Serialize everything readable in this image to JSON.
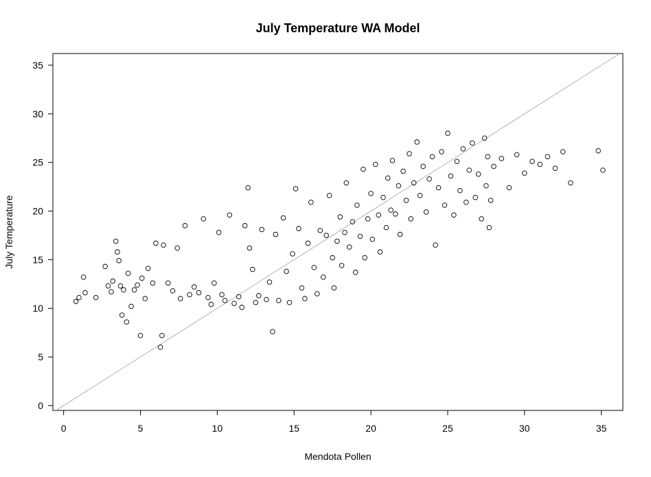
{
  "chart_data": {
    "type": "scatter",
    "title": "July Temperature WA Model",
    "xlabel": "Mendota Pollen",
    "ylabel": "July Temperature",
    "xlim": [
      -0.7,
      36.4
    ],
    "ylim": [
      -0.5,
      36.2
    ],
    "x_ticks": [
      0,
      5,
      10,
      15,
      20,
      25,
      30,
      35
    ],
    "y_ticks": [
      0,
      5,
      10,
      15,
      20,
      25,
      30,
      35
    ],
    "marker": "open-circle",
    "point_color": "#000000",
    "reference_line": {
      "type": "y=x",
      "color": "#a0a0a0"
    },
    "grid": false,
    "legend": "none",
    "points": [
      [
        0.8,
        10.7
      ],
      [
        1.0,
        11.1
      ],
      [
        1.3,
        13.2
      ],
      [
        1.4,
        11.6
      ],
      [
        2.1,
        11.1
      ],
      [
        2.7,
        14.3
      ],
      [
        2.9,
        12.3
      ],
      [
        3.1,
        11.7
      ],
      [
        3.2,
        12.8
      ],
      [
        3.4,
        16.9
      ],
      [
        3.5,
        15.8
      ],
      [
        3.6,
        14.9
      ],
      [
        3.7,
        12.3
      ],
      [
        3.8,
        9.3
      ],
      [
        3.9,
        11.9
      ],
      [
        4.1,
        8.6
      ],
      [
        4.2,
        13.6
      ],
      [
        4.4,
        10.2
      ],
      [
        4.6,
        11.9
      ],
      [
        4.8,
        12.4
      ],
      [
        5.0,
        7.2
      ],
      [
        5.1,
        13.1
      ],
      [
        5.3,
        11.0
      ],
      [
        5.5,
        14.1
      ],
      [
        5.8,
        12.6
      ],
      [
        6.0,
        16.7
      ],
      [
        6.3,
        6.0
      ],
      [
        6.4,
        7.2
      ],
      [
        6.5,
        16.5
      ],
      [
        6.8,
        12.6
      ],
      [
        7.1,
        11.8
      ],
      [
        7.4,
        16.2
      ],
      [
        7.6,
        11.0
      ],
      [
        7.9,
        18.5
      ],
      [
        8.2,
        11.4
      ],
      [
        8.5,
        12.2
      ],
      [
        8.8,
        11.6
      ],
      [
        9.1,
        19.2
      ],
      [
        9.4,
        11.1
      ],
      [
        9.6,
        10.4
      ],
      [
        9.8,
        12.6
      ],
      [
        10.1,
        17.8
      ],
      [
        10.3,
        11.4
      ],
      [
        10.5,
        10.8
      ],
      [
        10.8,
        19.6
      ],
      [
        11.1,
        10.5
      ],
      [
        11.4,
        11.2
      ],
      [
        11.6,
        10.1
      ],
      [
        11.8,
        18.5
      ],
      [
        12.0,
        22.4
      ],
      [
        12.1,
        16.2
      ],
      [
        12.3,
        14.0
      ],
      [
        12.5,
        10.6
      ],
      [
        12.7,
        11.3
      ],
      [
        12.9,
        18.1
      ],
      [
        13.2,
        10.9
      ],
      [
        13.4,
        12.7
      ],
      [
        13.6,
        7.6
      ],
      [
        13.8,
        17.6
      ],
      [
        14.0,
        10.8
      ],
      [
        14.3,
        19.3
      ],
      [
        14.5,
        13.8
      ],
      [
        14.7,
        10.6
      ],
      [
        14.9,
        15.6
      ],
      [
        15.1,
        22.3
      ],
      [
        15.3,
        18.2
      ],
      [
        15.5,
        12.1
      ],
      [
        15.7,
        11.0
      ],
      [
        15.9,
        16.7
      ],
      [
        16.1,
        20.9
      ],
      [
        16.3,
        14.2
      ],
      [
        16.5,
        11.5
      ],
      [
        16.7,
        18.0
      ],
      [
        16.9,
        13.2
      ],
      [
        17.1,
        17.5
      ],
      [
        17.3,
        21.6
      ],
      [
        17.5,
        15.2
      ],
      [
        17.6,
        12.1
      ],
      [
        17.8,
        16.9
      ],
      [
        18.0,
        19.4
      ],
      [
        18.1,
        14.4
      ],
      [
        18.3,
        17.8
      ],
      [
        18.4,
        22.9
      ],
      [
        18.6,
        16.3
      ],
      [
        18.8,
        18.9
      ],
      [
        19.0,
        13.7
      ],
      [
        19.1,
        20.6
      ],
      [
        19.3,
        17.4
      ],
      [
        19.5,
        24.3
      ],
      [
        19.6,
        15.2
      ],
      [
        19.8,
        19.2
      ],
      [
        20.0,
        21.8
      ],
      [
        20.1,
        17.1
      ],
      [
        20.3,
        24.8
      ],
      [
        20.5,
        19.6
      ],
      [
        20.6,
        15.8
      ],
      [
        20.8,
        21.4
      ],
      [
        21.0,
        18.3
      ],
      [
        21.1,
        23.4
      ],
      [
        21.3,
        20.1
      ],
      [
        21.4,
        25.2
      ],
      [
        21.6,
        19.7
      ],
      [
        21.8,
        22.6
      ],
      [
        21.9,
        17.6
      ],
      [
        22.1,
        24.1
      ],
      [
        22.3,
        21.1
      ],
      [
        22.5,
        25.9
      ],
      [
        22.6,
        19.2
      ],
      [
        22.8,
        22.9
      ],
      [
        23.0,
        27.1
      ],
      [
        23.2,
        21.6
      ],
      [
        23.4,
        24.6
      ],
      [
        23.6,
        19.9
      ],
      [
        23.8,
        23.3
      ],
      [
        24.0,
        25.6
      ],
      [
        24.2,
        16.5
      ],
      [
        24.4,
        22.4
      ],
      [
        24.6,
        26.1
      ],
      [
        24.8,
        20.6
      ],
      [
        25.0,
        28.0
      ],
      [
        25.2,
        23.6
      ],
      [
        25.4,
        19.6
      ],
      [
        25.6,
        25.1
      ],
      [
        25.8,
        22.1
      ],
      [
        26.0,
        26.4
      ],
      [
        26.2,
        20.9
      ],
      [
        26.4,
        24.2
      ],
      [
        26.6,
        27.0
      ],
      [
        26.8,
        21.4
      ],
      [
        27.0,
        23.8
      ],
      [
        27.2,
        19.2
      ],
      [
        27.4,
        27.5
      ],
      [
        27.5,
        22.6
      ],
      [
        27.6,
        25.6
      ],
      [
        27.7,
        18.3
      ],
      [
        27.8,
        21.1
      ],
      [
        28.0,
        24.6
      ],
      [
        28.5,
        25.4
      ],
      [
        29.0,
        22.4
      ],
      [
        29.5,
        25.8
      ],
      [
        30.0,
        23.9
      ],
      [
        30.5,
        25.1
      ],
      [
        31.0,
        24.8
      ],
      [
        31.5,
        25.6
      ],
      [
        32.0,
        24.4
      ],
      [
        32.5,
        26.1
      ],
      [
        33.0,
        22.9
      ],
      [
        34.8,
        26.2
      ],
      [
        35.1,
        24.2
      ]
    ]
  }
}
